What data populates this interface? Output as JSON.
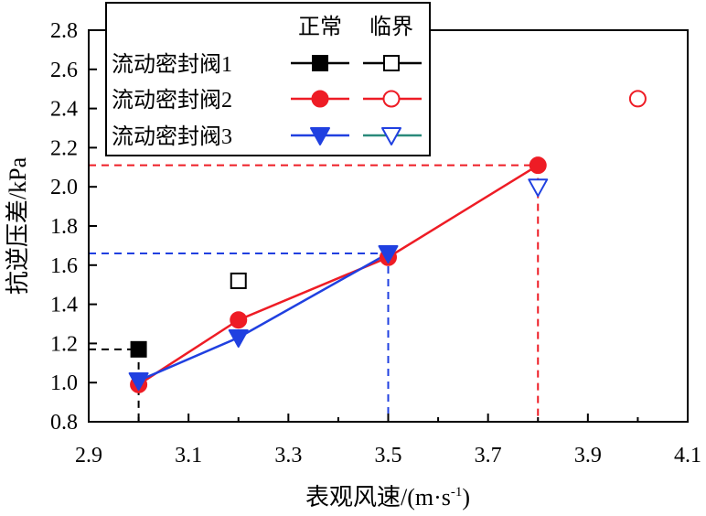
{
  "chart_data": {
    "type": "line",
    "xlabel": "表观风速/(m·s",
    "xlabel_sup": "-1",
    "xlabel_end": ")",
    "ylabel": "抗逆压差/kPa",
    "xlim": [
      2.9,
      4.1
    ],
    "ylim": [
      0.8,
      2.8
    ],
    "x_ticks": [
      "2.9",
      "3.1",
      "3.3",
      "3.5",
      "3.7",
      "3.9",
      "4.1"
    ],
    "y_ticks": [
      "0.8",
      "1.0",
      "1.2",
      "1.4",
      "1.6",
      "1.8",
      "2.0",
      "2.2",
      "2.4",
      "2.6",
      "2.8"
    ],
    "legend_position": "top-left",
    "legend_headers": [
      "正常",
      "临界"
    ],
    "series": [
      {
        "name": "流动密封阀1",
        "color": "#000000",
        "critical_color": "#000000",
        "marker": "square",
        "normal": [
          {
            "x": 3.0,
            "y": 1.17
          }
        ],
        "critical": [
          {
            "x": 3.2,
            "y": 1.52
          }
        ],
        "ref_x": 3.0,
        "ref_y": 1.17
      },
      {
        "name": "流动密封阀2",
        "color": "#ee1c25",
        "critical_color": "#ee1c25",
        "marker": "circle",
        "normal": [
          {
            "x": 3.0,
            "y": 0.99
          },
          {
            "x": 3.2,
            "y": 1.32
          },
          {
            "x": 3.5,
            "y": 1.64
          },
          {
            "x": 3.8,
            "y": 2.11
          }
        ],
        "critical": [
          {
            "x": 4.0,
            "y": 2.45
          }
        ],
        "ref_x": 3.8,
        "ref_y": 2.11
      },
      {
        "name": "流动密封阀3",
        "color": "#2040e0",
        "critical_color": "#2a8a7a",
        "marker": "triangle-down",
        "normal": [
          {
            "x": 3.0,
            "y": 1.01
          },
          {
            "x": 3.2,
            "y": 1.23
          },
          {
            "x": 3.5,
            "y": 1.66
          }
        ],
        "critical": [
          {
            "x": 3.8,
            "y": 2.0
          }
        ],
        "ref_x": 3.5,
        "ref_y": 1.66
      }
    ]
  }
}
